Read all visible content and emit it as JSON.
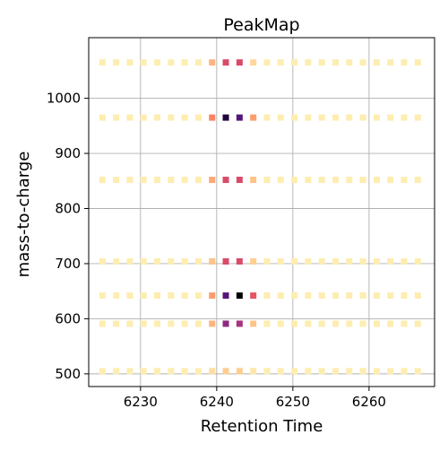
{
  "chart_data": {
    "type": "heatmap",
    "title": "PeakMap",
    "xlabel": "Retention Time",
    "ylabel": "mass-to-charge",
    "xlim": [
      6223.2,
      6268.6
    ],
    "ylim": [
      477,
      1110
    ],
    "xticks": [
      6230,
      6240,
      6250,
      6260
    ],
    "yticks": [
      500,
      600,
      700,
      800,
      900,
      1000
    ],
    "grid": true,
    "colormap": "magma_r",
    "x": [
      6225.0,
      6226.8,
      6228.6,
      6230.4,
      6232.2,
      6234.0,
      6235.8,
      6237.6,
      6239.4,
      6241.2,
      6243.0,
      6244.8,
      6246.6,
      6248.4,
      6250.2,
      6252.0,
      6253.8,
      6255.6,
      6257.4,
      6259.2,
      6261.0,
      6262.8,
      6264.6,
      6266.4
    ],
    "rows": [
      {
        "mz": 1065,
        "intensity": [
          0.05,
          0.05,
          0.05,
          0.05,
          0.05,
          0.05,
          0.05,
          0.05,
          0.22,
          0.55,
          0.55,
          0.12,
          0.05,
          0.05,
          0.05,
          0.05,
          0.05,
          0.05,
          0.05,
          0.05,
          0.05,
          0.05,
          0.05,
          0.05
        ]
      },
      {
        "mz": 965,
        "intensity": [
          0.05,
          0.05,
          0.05,
          0.05,
          0.05,
          0.05,
          0.05,
          0.05,
          0.35,
          0.95,
          0.85,
          0.28,
          0.05,
          0.05,
          0.05,
          0.05,
          0.05,
          0.05,
          0.05,
          0.05,
          0.05,
          0.05,
          0.05,
          0.05
        ]
      },
      {
        "mz": 852,
        "intensity": [
          0.05,
          0.05,
          0.05,
          0.05,
          0.05,
          0.05,
          0.05,
          0.05,
          0.25,
          0.55,
          0.55,
          0.18,
          0.05,
          0.05,
          0.05,
          0.05,
          0.05,
          0.05,
          0.05,
          0.05,
          0.05,
          0.05,
          0.05,
          0.05
        ]
      },
      {
        "mz": 704,
        "intensity": [
          0.05,
          0.05,
          0.05,
          0.05,
          0.05,
          0.05,
          0.05,
          0.05,
          0.18,
          0.55,
          0.55,
          0.15,
          0.05,
          0.05,
          0.05,
          0.05,
          0.05,
          0.05,
          0.05,
          0.05,
          0.05,
          0.05,
          0.05,
          0.05
        ]
      },
      {
        "mz": 642,
        "intensity": [
          0.05,
          0.05,
          0.05,
          0.05,
          0.05,
          0.05,
          0.05,
          0.05,
          0.28,
          0.85,
          1.0,
          0.5,
          0.05,
          0.05,
          0.05,
          0.05,
          0.05,
          0.05,
          0.05,
          0.05,
          0.05,
          0.05,
          0.05,
          0.05
        ]
      },
      {
        "mz": 591,
        "intensity": [
          0.05,
          0.05,
          0.05,
          0.05,
          0.05,
          0.05,
          0.05,
          0.05,
          0.22,
          0.75,
          0.7,
          0.18,
          0.05,
          0.05,
          0.05,
          0.05,
          0.05,
          0.05,
          0.05,
          0.05,
          0.05,
          0.05,
          0.05,
          0.05
        ]
      },
      {
        "mz": 505,
        "intensity": [
          0.05,
          0.05,
          0.05,
          0.05,
          0.05,
          0.05,
          0.05,
          0.05,
          0.1,
          0.15,
          0.15,
          0.07,
          0.05,
          0.05,
          0.05,
          0.05,
          0.05,
          0.05,
          0.05,
          0.05,
          0.05,
          0.05,
          0.05,
          0.05
        ]
      }
    ]
  }
}
